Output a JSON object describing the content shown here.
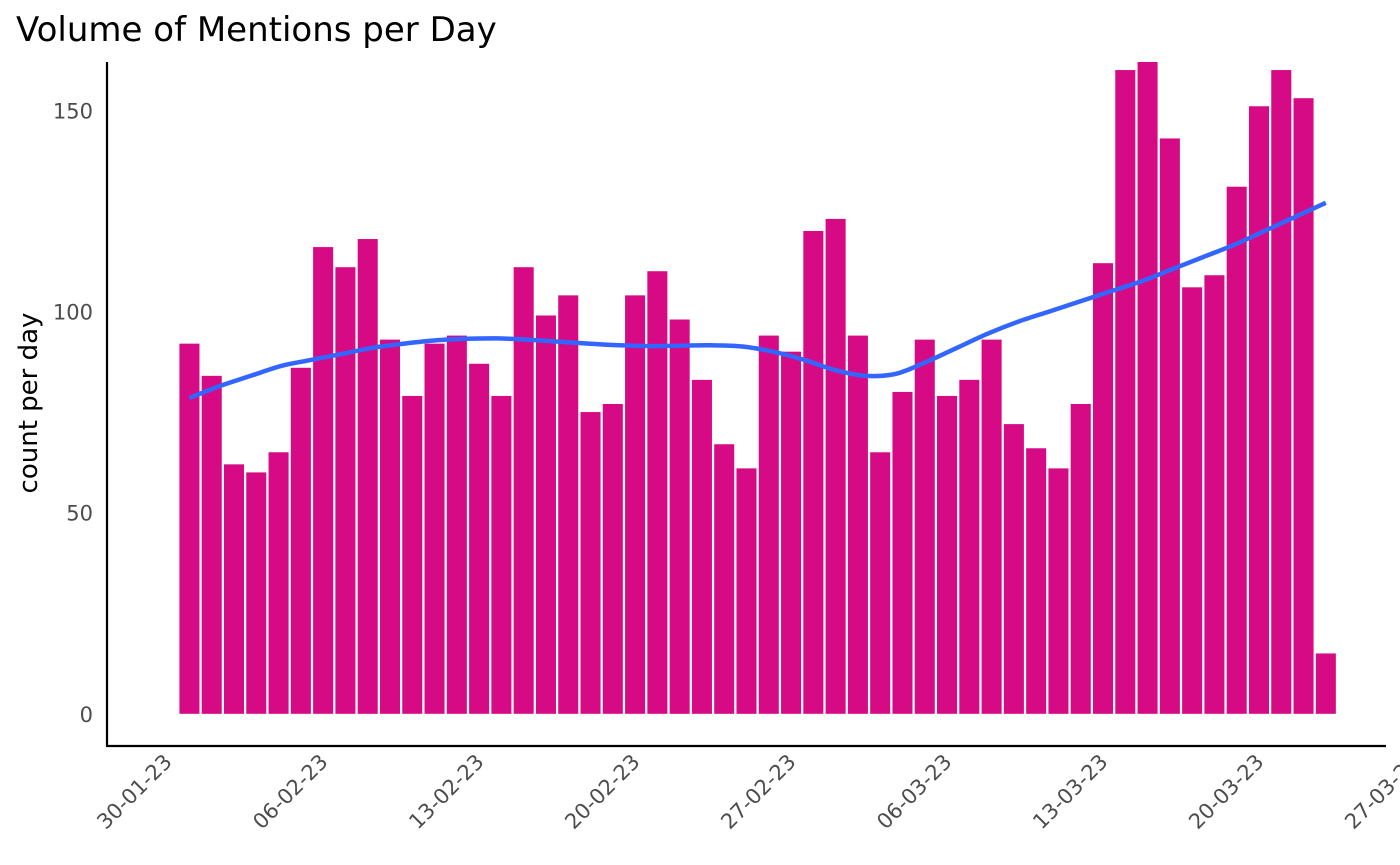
{
  "chart_data": {
    "type": "bar",
    "title": "Volume of Mentions per Day",
    "xlabel": "",
    "ylabel": "count per day",
    "x_start_date": "2023-01-31",
    "x_tick_labels": [
      "30-01-23",
      "06-02-23",
      "13-02-23",
      "20-02-23",
      "27-02-23",
      "06-03-23",
      "13-03-23",
      "20-03-23",
      "27-03-23"
    ],
    "y_ticks": [
      0,
      50,
      100,
      150
    ],
    "ylim": [
      -8,
      162
    ],
    "bar_color": "#d60a84",
    "smooth_color": "#3366ff",
    "values": [
      92,
      84,
      62,
      60,
      65,
      86,
      116,
      111,
      118,
      93,
      79,
      92,
      94,
      87,
      79,
      111,
      99,
      104,
      75,
      77,
      104,
      110,
      98,
      83,
      67,
      61,
      94,
      90,
      120,
      123,
      94,
      65,
      80,
      93,
      79,
      83,
      93,
      72,
      66,
      61,
      77,
      112,
      160,
      162,
      143,
      106,
      109,
      131,
      151,
      160,
      153,
      15
    ],
    "smooth": {
      "name": "",
      "values": [
        78.5,
        81.5,
        84,
        86.5,
        88,
        89.5,
        91,
        92,
        92.8,
        93.2,
        93.3,
        93,
        92.5,
        92,
        91.6,
        91.4,
        91.5,
        91.6,
        91.3,
        90,
        88,
        85.5,
        84,
        84.5,
        87.5,
        91,
        94.5,
        97.5,
        100,
        102.5,
        105,
        107.5,
        110.5,
        113.5,
        116.5,
        120,
        123.5,
        127
      ]
    },
    "grid": false
  }
}
